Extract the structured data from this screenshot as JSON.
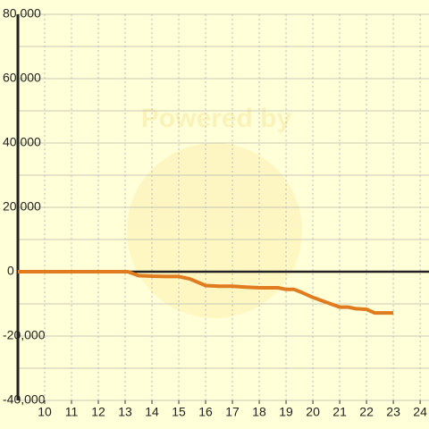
{
  "chart_data": {
    "type": "line",
    "watermark": "Powered by",
    "x": [
      9,
      13.1,
      13.5,
      14,
      14.5,
      15,
      15.4,
      16,
      16.5,
      17,
      17.5,
      18,
      18.7,
      19,
      19.3,
      19.6,
      20,
      20.5,
      21,
      21.3,
      21.6,
      22,
      22.3,
      23
    ],
    "series": [
      {
        "color": "#e07b20",
        "values": [
          0,
          0,
          -1200,
          -1400,
          -1500,
          -1500,
          -2200,
          -4300,
          -4500,
          -4500,
          -4800,
          -5000,
          -5000,
          -5500,
          -5500,
          -6500,
          -8000,
          -9500,
          -11000,
          -11000,
          -11500,
          -11700,
          -12800,
          -12800
        ]
      }
    ],
    "xlim": [
      9,
      24.33
    ],
    "xticks": [
      10,
      11,
      12,
      13,
      14,
      15,
      16,
      17,
      18,
      19,
      20,
      21,
      22,
      23,
      24
    ],
    "ylim": [
      -40000,
      80000
    ],
    "yticks": [
      {
        "value": -40000,
        "label": "-40,000"
      },
      {
        "value": -20000,
        "label": "-20,000"
      },
      0,
      {
        "value": 20000,
        "label": "20,000"
      },
      {
        "value": 40000,
        "label": "40,000"
      },
      {
        "value": 60000,
        "label": "60,000"
      },
      {
        "value": 80000,
        "label": "80,000"
      }
    ],
    "grid": true
  }
}
